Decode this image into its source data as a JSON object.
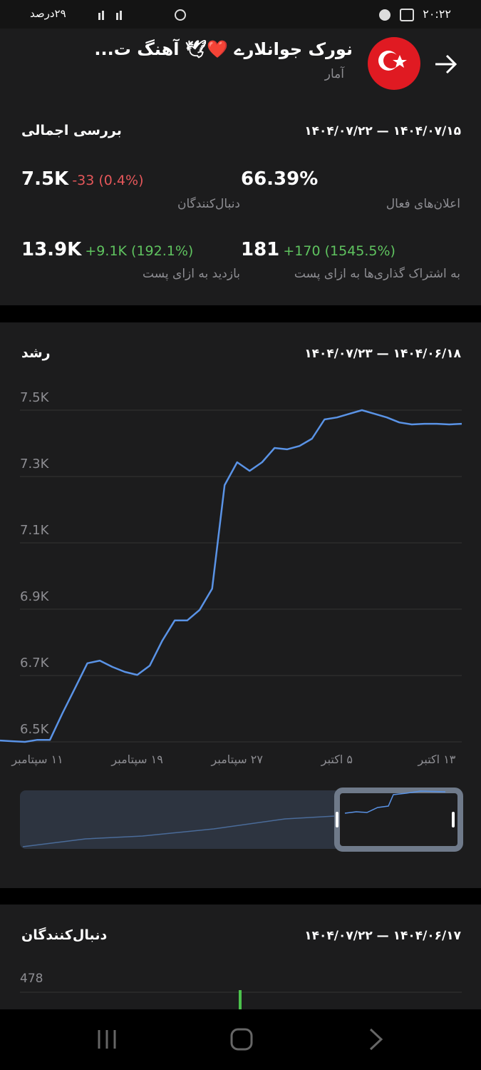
{
  "status_bar": {
    "time": "۲۰:۲۲",
    "battery": "۲۹درصد"
  },
  "header": {
    "title": "نورک جوانلارے ❤️🕊 آهنگ ت...",
    "subtitle": "آمار"
  },
  "overview": {
    "title": "بررسی اجمالی",
    "date_range": "۱۴۰۴/۰۷/۱۵ — ۱۴۰۴/۰۷/۲۲",
    "stats": [
      {
        "value": "7.5K",
        "change": "-33 (0.4%)",
        "label": "دنبال‌کنندگان"
      },
      {
        "value": "66.39%",
        "label": "اعلان‌های فعال"
      },
      {
        "value": "13.9K",
        "change": "+9.1K (192.1%)",
        "label": "بازدید به ازای پست"
      },
      {
        "value": "181",
        "change": "+170 (1545.5%)",
        "label": "به اشتراک گذاری‌ها به ازای پست"
      }
    ]
  },
  "growth": {
    "title": "رشد",
    "date_range": "۱۴۰۴/۰۶/۱۸ — ۱۴۰۴/۰۷/۲۳"
  },
  "chart_data": {
    "type": "line",
    "color": "#5a93e6",
    "grid": true,
    "categories": [
      null,
      null,
      null,
      "۱۱ سپتامبر",
      null,
      null,
      null,
      null,
      null,
      null,
      null,
      "۱۹ سپتامبر",
      null,
      null,
      null,
      null,
      null,
      null,
      null,
      "۲۷ سپتامبر",
      null,
      null,
      null,
      null,
      null,
      null,
      null,
      "۵ اکتبر",
      null,
      null,
      null,
      null,
      null,
      null,
      null,
      "۱۳ اکتبر",
      null,
      null
    ],
    "values": [
      6504,
      6502,
      6500,
      6506,
      6506,
      6586,
      6661,
      6737,
      6745,
      6726,
      6711,
      6702,
      6730,
      6805,
      6866,
      6866,
      6898,
      6962,
      7274,
      7343,
      7317,
      7343,
      7386,
      7382,
      7392,
      7414,
      7472,
      7478,
      7489,
      7500,
      7489,
      7478,
      7463,
      7457,
      7459,
      7459,
      7457,
      7459
    ],
    "ylim": [
      6480,
      7540
    ],
    "yticks": [
      {
        "value": 6500,
        "label": "6.5K"
      },
      {
        "value": 6700,
        "label": "6.7K"
      },
      {
        "value": 6900,
        "label": "6.9K"
      },
      {
        "value": 7100,
        "label": "7.1K"
      },
      {
        "value": 7300,
        "label": "7.3K"
      },
      {
        "value": 7500,
        "label": "7.5K"
      }
    ]
  },
  "followers": {
    "title": "دنبال‌کنندگان",
    "date_range": "۱۴۰۴/۰۶/۱۷ — ۱۴۰۴/۰۷/۲۲",
    "yticks": [
      478
    ]
  }
}
